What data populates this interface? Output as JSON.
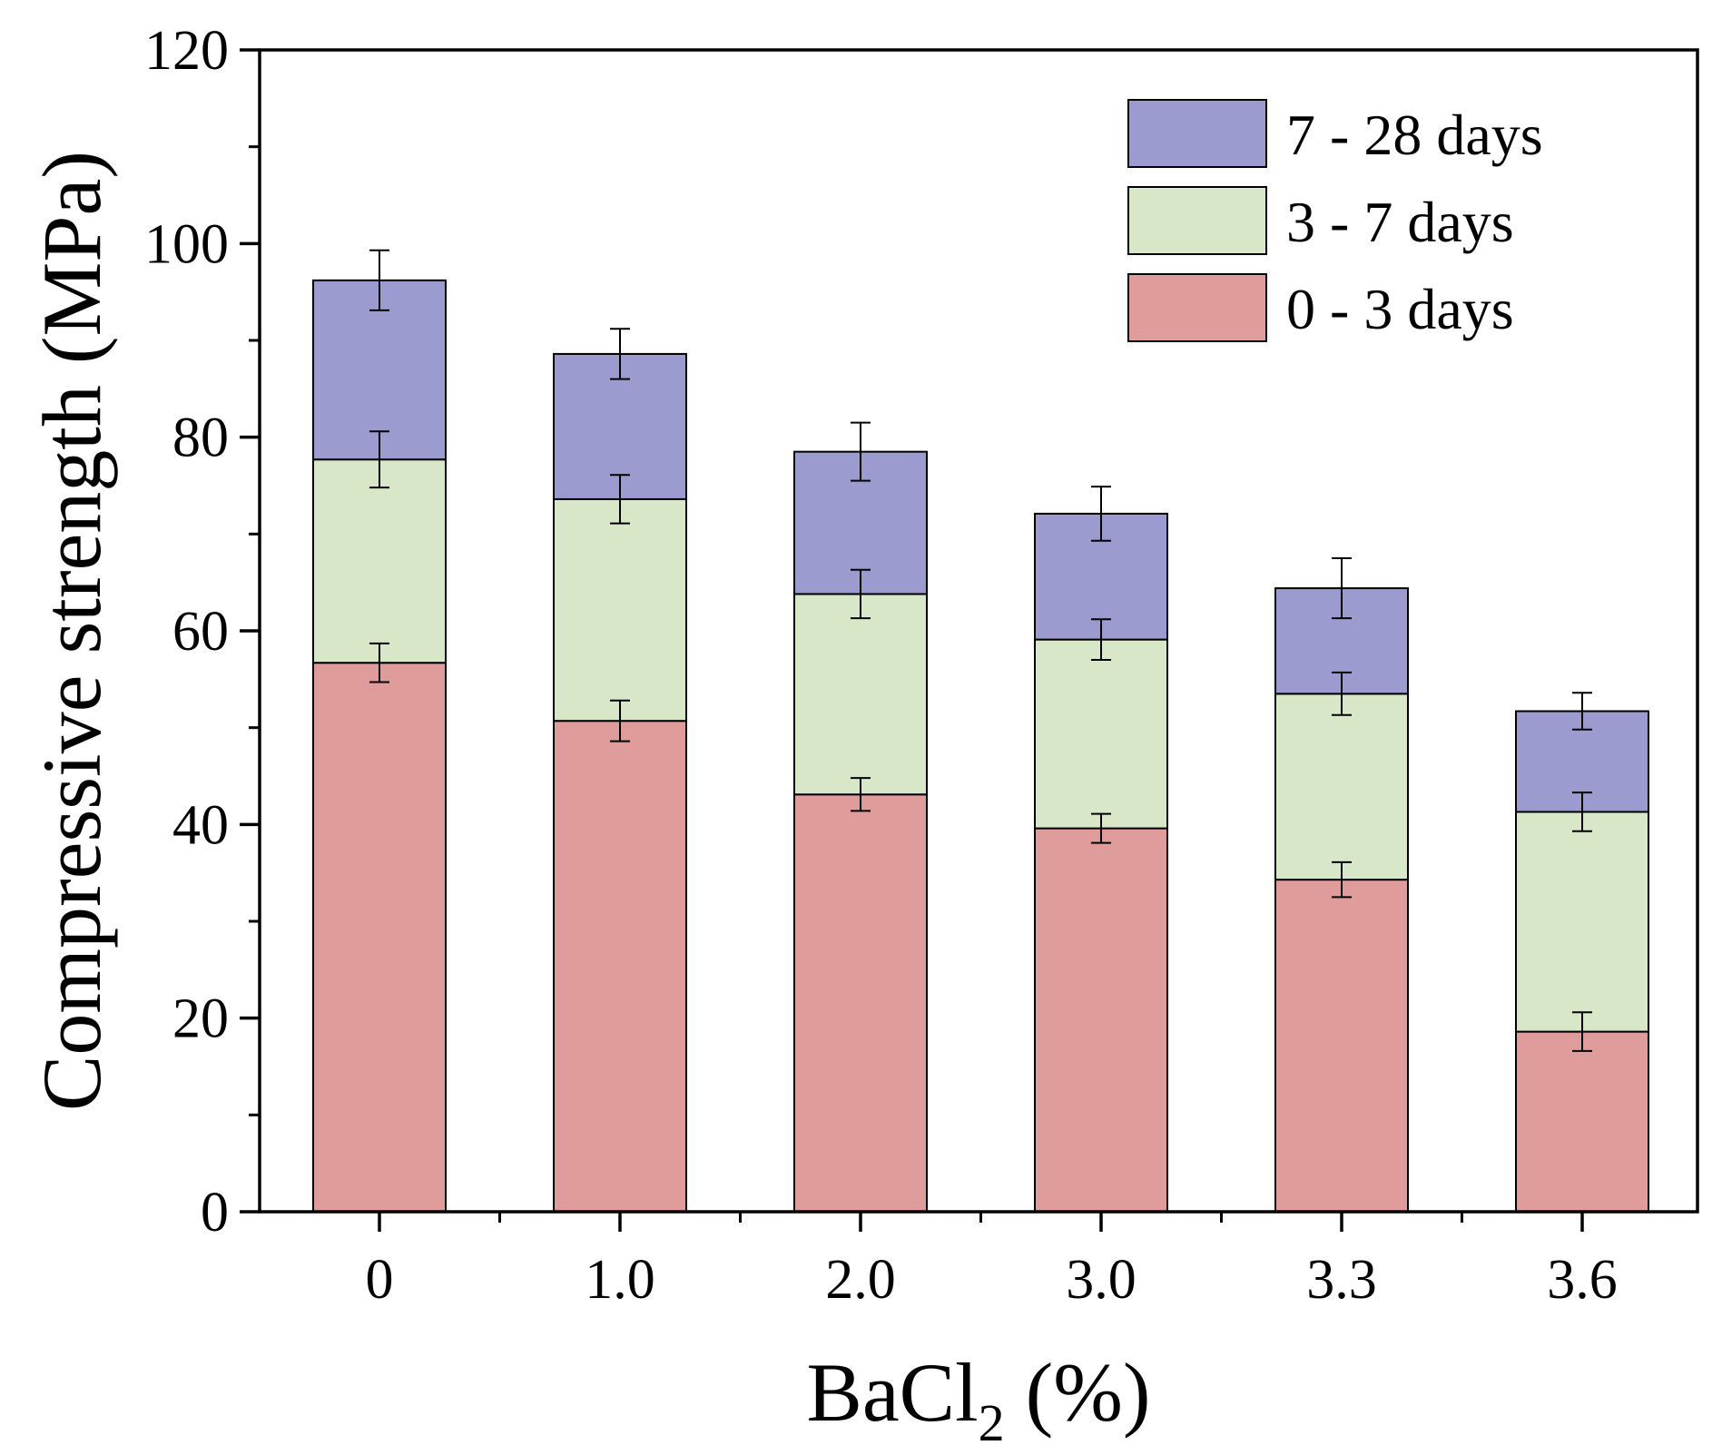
{
  "chart_data": {
    "type": "bar",
    "stacked": true,
    "xlabel": "BaCl",
    "xlabel_subscript": "2",
    "xlabel_suffix": " (%)",
    "ylabel": "Compressive strength (MPa)",
    "ylim": [
      0,
      120
    ],
    "yticks": [
      "0",
      "20",
      "40",
      "60",
      "80",
      "100",
      "120"
    ],
    "categories": [
      "0",
      "1.0",
      "2.0",
      "3.0",
      "3.3",
      "3.6"
    ],
    "legend_position": "top-right",
    "series": [
      {
        "name": "0 - 3 days",
        "color": "#e09c9b",
        "cumulative": [
          56.7,
          50.7,
          43.1,
          39.6,
          34.3,
          18.6
        ],
        "errors": [
          2.0,
          2.1,
          1.7,
          1.5,
          1.8,
          2.0
        ]
      },
      {
        "name": "3 - 7 days",
        "color": "#d9e7c9",
        "cumulative": [
          77.7,
          73.6,
          63.8,
          59.1,
          53.5,
          41.3
        ],
        "errors": [
          2.9,
          2.5,
          2.5,
          2.1,
          2.2,
          2.0
        ]
      },
      {
        "name": "7 - 28 days",
        "color": "#9b9bd0",
        "cumulative": [
          96.2,
          88.6,
          78.5,
          72.1,
          64.4,
          51.7
        ],
        "errors": [
          3.1,
          2.6,
          3.0,
          2.8,
          3.1,
          1.9
        ]
      }
    ]
  }
}
